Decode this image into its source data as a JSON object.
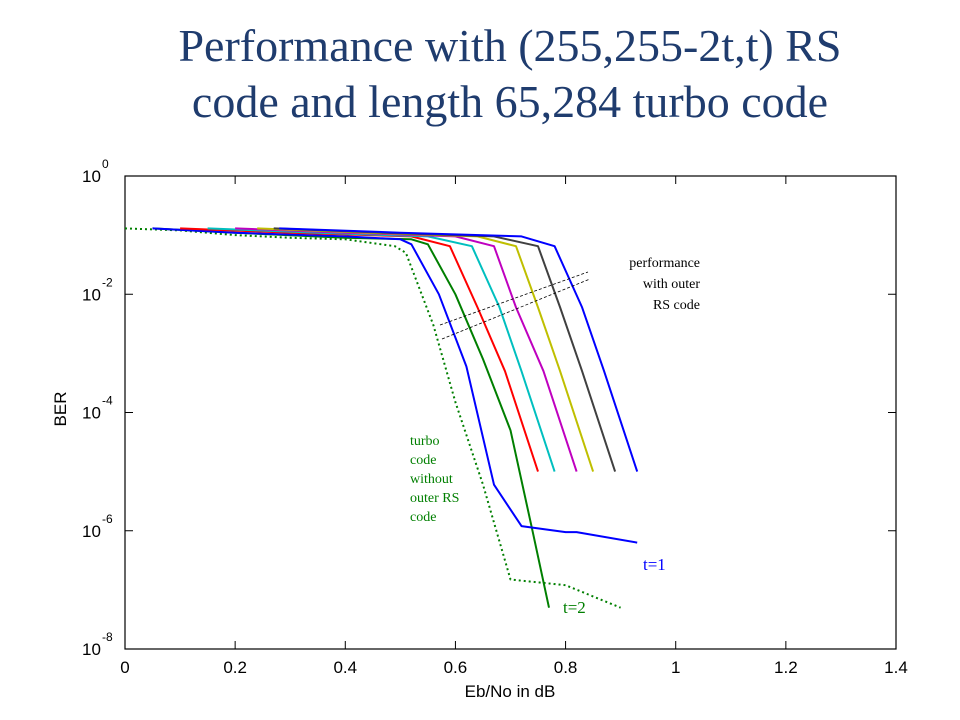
{
  "title": {
    "line1": "Performance with (255,255-2t,t) RS",
    "line2": "code and length 65,284 turbo code"
  },
  "colors": {
    "title": "#1f3c6e",
    "series": [
      "#0000ff",
      "#007f00",
      "#ff0000",
      "#00bfbf",
      "#bf00bf",
      "#bfbf00",
      "#404040",
      "#0000ff"
    ],
    "turbo_only": "#007f00"
  },
  "chart_data": {
    "type": "line",
    "xlabel": "Eb/No in dB",
    "ylabel": "BER",
    "xlim": [
      0,
      1.4
    ],
    "ylim": [
      1e-08,
      1
    ],
    "yscale": "log",
    "grid": false,
    "x_ticks": [
      "0",
      "0.2",
      "0.4",
      "0.6",
      "0.8",
      "1",
      "1.2",
      "1.4"
    ],
    "y_ticks": [
      {
        "base": "10",
        "exp": "0"
      },
      {
        "base": "10",
        "exp": "-2"
      },
      {
        "base": "10",
        "exp": "-4"
      },
      {
        "base": "10",
        "exp": "-6"
      },
      {
        "base": "10",
        "exp": "-8"
      }
    ],
    "series": [
      {
        "dashed": true,
        "color": "#007f00",
        "points": [
          [
            0.0,
            0.13
          ],
          [
            0.1,
            0.12
          ],
          [
            0.2,
            0.1
          ],
          [
            0.3,
            0.09
          ],
          [
            0.4,
            0.085
          ],
          [
            0.49,
            0.065
          ],
          [
            0.51,
            0.05
          ],
          [
            0.56,
            0.003
          ],
          [
            0.6,
            0.00015
          ],
          [
            0.65,
            6e-06
          ],
          [
            0.7,
            1.5e-07
          ],
          [
            0.8,
            1.2e-07
          ],
          [
            0.9,
            5e-08
          ]
        ]
      },
      {
        "color": "#007f00",
        "label": "t=2",
        "points": [
          [
            0.05,
            0.13
          ],
          [
            0.2,
            0.11
          ],
          [
            0.4,
            0.09
          ],
          [
            0.52,
            0.085
          ],
          [
            0.55,
            0.07
          ],
          [
            0.6,
            0.01
          ],
          [
            0.65,
            0.0008
          ],
          [
            0.7,
            5e-05
          ],
          [
            0.74,
            1e-06
          ],
          [
            0.77,
            5e-08
          ]
        ]
      },
      {
        "color": "#0000ff",
        "label": "t=1",
        "points": [
          [
            0.05,
            0.13
          ],
          [
            0.2,
            0.11
          ],
          [
            0.4,
            0.095
          ],
          [
            0.5,
            0.085
          ],
          [
            0.52,
            0.07
          ],
          [
            0.57,
            0.01
          ],
          [
            0.62,
            0.0006
          ],
          [
            0.67,
            6e-06
          ],
          [
            0.72,
            1.2e-06
          ],
          [
            0.8,
            9.5e-07
          ],
          [
            0.82,
            9.5e-07
          ],
          [
            0.93,
            6.3e-07
          ]
        ]
      },
      {
        "color": "#ff0000",
        "points": [
          [
            0.1,
            0.13
          ],
          [
            0.3,
            0.11
          ],
          [
            0.52,
            0.095
          ],
          [
            0.59,
            0.065
          ],
          [
            0.64,
            0.006
          ],
          [
            0.69,
            0.0005
          ],
          [
            0.75,
            1e-05
          ]
        ]
      },
      {
        "color": "#00bfbf",
        "points": [
          [
            0.15,
            0.13
          ],
          [
            0.35,
            0.11
          ],
          [
            0.55,
            0.095
          ],
          [
            0.63,
            0.065
          ],
          [
            0.68,
            0.006
          ],
          [
            0.72,
            0.0005
          ],
          [
            0.78,
            1e-05
          ]
        ]
      },
      {
        "color": "#bf00bf",
        "points": [
          [
            0.2,
            0.13
          ],
          [
            0.4,
            0.11
          ],
          [
            0.6,
            0.095
          ],
          [
            0.67,
            0.065
          ],
          [
            0.71,
            0.006
          ],
          [
            0.76,
            0.0005
          ],
          [
            0.82,
            1e-05
          ]
        ]
      },
      {
        "color": "#bfbf00",
        "points": [
          [
            0.24,
            0.13
          ],
          [
            0.44,
            0.11
          ],
          [
            0.64,
            0.095
          ],
          [
            0.71,
            0.065
          ],
          [
            0.75,
            0.006
          ],
          [
            0.79,
            0.0005
          ],
          [
            0.85,
            1e-05
          ]
        ]
      },
      {
        "color": "#404040",
        "points": [
          [
            0.27,
            0.13
          ],
          [
            0.47,
            0.11
          ],
          [
            0.67,
            0.095
          ],
          [
            0.75,
            0.065
          ],
          [
            0.79,
            0.006
          ],
          [
            0.83,
            0.0005
          ],
          [
            0.89,
            1e-05
          ]
        ]
      },
      {
        "color": "#0000ff",
        "points": [
          [
            0.28,
            0.13
          ],
          [
            0.5,
            0.11
          ],
          [
            0.72,
            0.095
          ],
          [
            0.78,
            0.065
          ],
          [
            0.83,
            0.006
          ],
          [
            0.87,
            0.0005
          ],
          [
            0.93,
            1e-05
          ]
        ]
      }
    ],
    "annotations": {
      "outer_rs": [
        "performance",
        "with outer",
        "RS code"
      ],
      "turbo_only": [
        "turbo",
        "code",
        "without",
        "outer RS",
        "code"
      ],
      "t1": "t=1",
      "t2": "t=2"
    }
  }
}
